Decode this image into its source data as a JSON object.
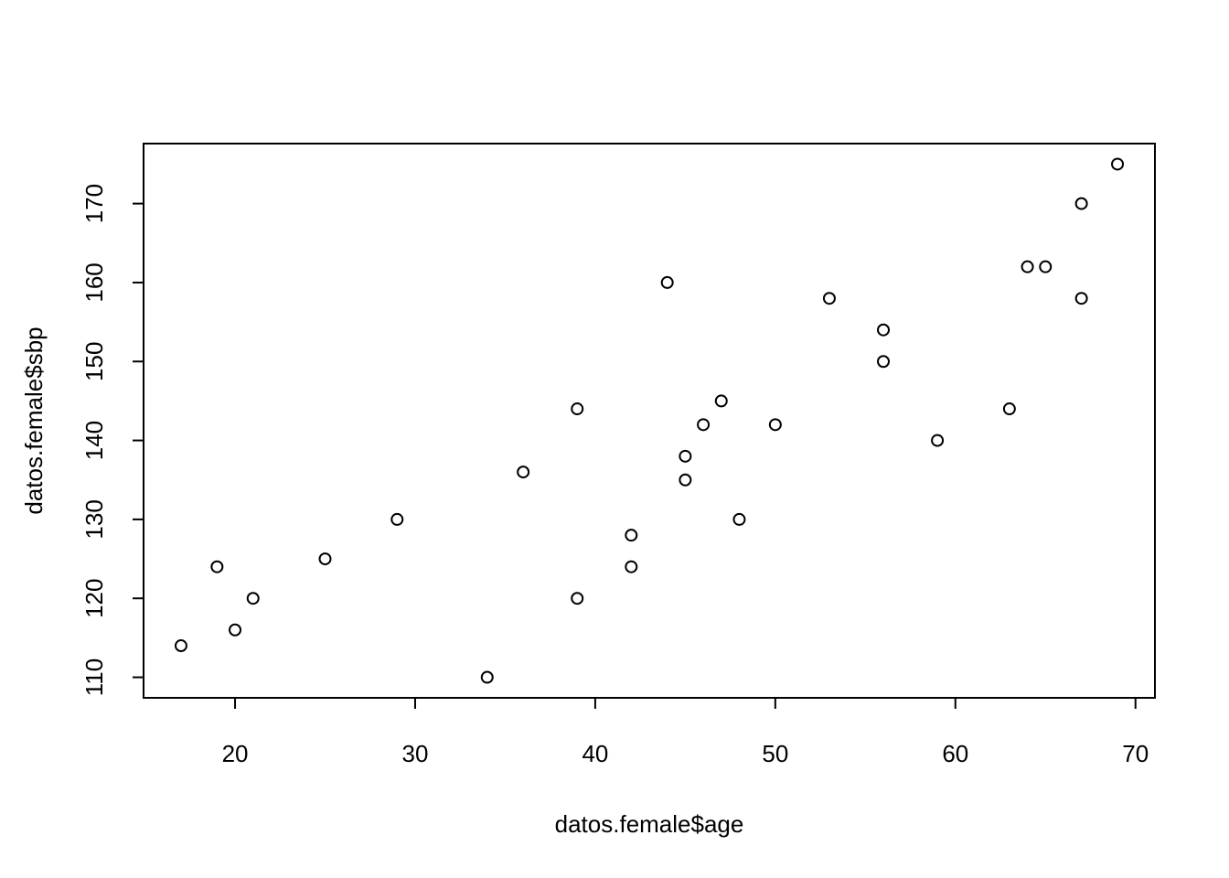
{
  "chart_data": {
    "type": "scatter",
    "x_label": "datos.female$age",
    "y_label": "datos.female$sbp",
    "x": [
      17,
      19,
      20,
      21,
      25,
      29,
      34,
      36,
      39,
      39,
      42,
      42,
      44,
      45,
      45,
      46,
      47,
      48,
      50,
      53,
      56,
      56,
      59,
      63,
      64,
      65,
      67,
      67,
      69
    ],
    "values": [
      114,
      124,
      116,
      120,
      125,
      130,
      110,
      136,
      144,
      120,
      128,
      124,
      160,
      138,
      135,
      142,
      145,
      130,
      142,
      158,
      154,
      150,
      140,
      144,
      162,
      162,
      170,
      158,
      175
    ],
    "color": "#000000",
    "xlim": [
      14.92,
      71.08
    ],
    "ylim": [
      107.4,
      177.6
    ],
    "xticks": [
      20,
      30,
      40,
      50,
      60,
      70
    ],
    "yticks": [
      110,
      120,
      130,
      140,
      150,
      160,
      170
    ]
  }
}
